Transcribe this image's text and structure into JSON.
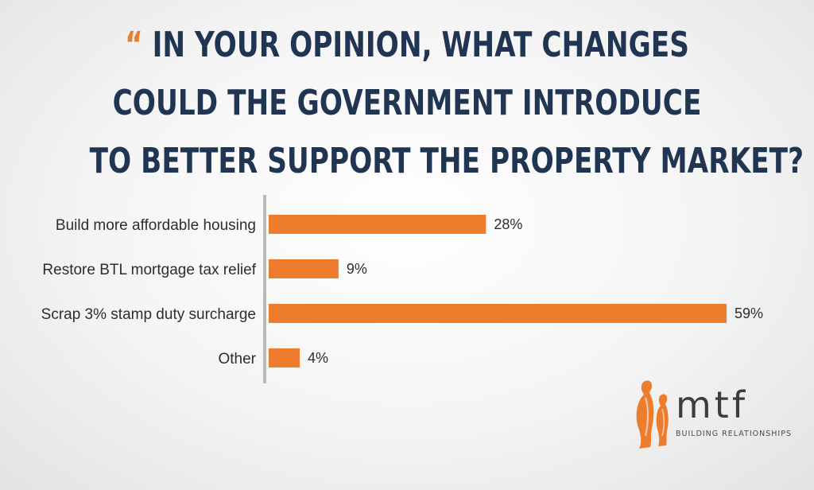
{
  "title": {
    "open_quote": "“",
    "line1": "IN YOUR OPINION, WHAT CHANGES",
    "line2": "COULD THE GOVERNMENT INTRODUCE",
    "line3": "TO BETTER SUPPORT THE PROPERTY MARKET?",
    "close_quote": "”"
  },
  "chart_data": {
    "type": "bar",
    "orientation": "horizontal",
    "categories": [
      "Build more affordable housing",
      "Restore BTL mortgage tax relief",
      "Scrap 3% stamp duty surcharge",
      "Other"
    ],
    "values": [
      28,
      9,
      59,
      4
    ],
    "value_labels": [
      "28%",
      "9%",
      "59%",
      "4%"
    ],
    "xlim": [
      0,
      59
    ],
    "grid": false,
    "bar_color": "#ec7d2d",
    "axis_color": "#b9b9b9"
  },
  "logo": {
    "name": "mtf",
    "tagline": "BUILDING RELATIONSHIPS",
    "icon": "penguins-icon",
    "color": "#ec7d2d"
  },
  "colors": {
    "title": "#1f3552",
    "accent": "#ec7d2d"
  }
}
